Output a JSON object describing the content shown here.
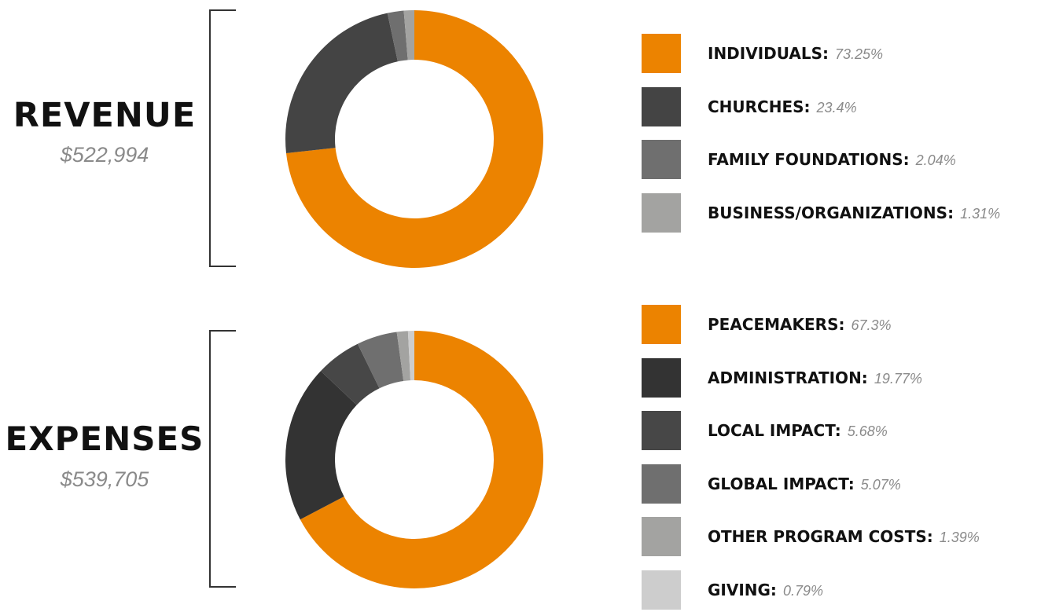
{
  "revenue": {
    "title": "REVENUE",
    "amount": "$522,994"
  },
  "expenses": {
    "title": "EXPENSES",
    "amount": "$539,705"
  },
  "chart_data": [
    {
      "type": "pie",
      "donut": true,
      "title": "REVENUE",
      "subtitle": "$522,994",
      "legend_position": "right",
      "slices": [
        {
          "label": "INDIVIDUALS:",
          "value_text": "73.25%",
          "value": 73.25,
          "color": "#EC8300"
        },
        {
          "label": "CHURCHES:",
          "value_text": "23.4%",
          "value": 23.4,
          "color": "#444444"
        },
        {
          "label": "FAMILY FOUNDATIONS:",
          "value_text": "2.04%",
          "value": 2.04,
          "color": "#6F6F6F"
        },
        {
          "label": "BUSINESS/ORGANIZATIONS:",
          "value_text": "1.31%",
          "value": 1.31,
          "color": "#A3A3A1"
        }
      ]
    },
    {
      "type": "pie",
      "donut": true,
      "title": "EXPENSES",
      "subtitle": "$539,705",
      "legend_position": "right",
      "slices": [
        {
          "label": "PEACEMAKERS:",
          "value_text": "67.3%",
          "value": 67.3,
          "color": "#EC8300"
        },
        {
          "label": "ADMINISTRATION:",
          "value_text": "19.77%",
          "value": 19.77,
          "color": "#333333"
        },
        {
          "label": "LOCAL IMPACT:",
          "value_text": "5.68%",
          "value": 5.68,
          "color": "#474747"
        },
        {
          "label": "GLOBAL IMPACT:",
          "value_text": "5.07%",
          "value": 5.07,
          "color": "#6F6F6F"
        },
        {
          "label": "OTHER PROGRAM COSTS:",
          "value_text": "1.39%",
          "value": 1.39,
          "color": "#A3A3A1"
        },
        {
          "label": "GIVING:",
          "value_text": "0.79%",
          "value": 0.79,
          "color": "#CDCDCD"
        }
      ]
    }
  ]
}
